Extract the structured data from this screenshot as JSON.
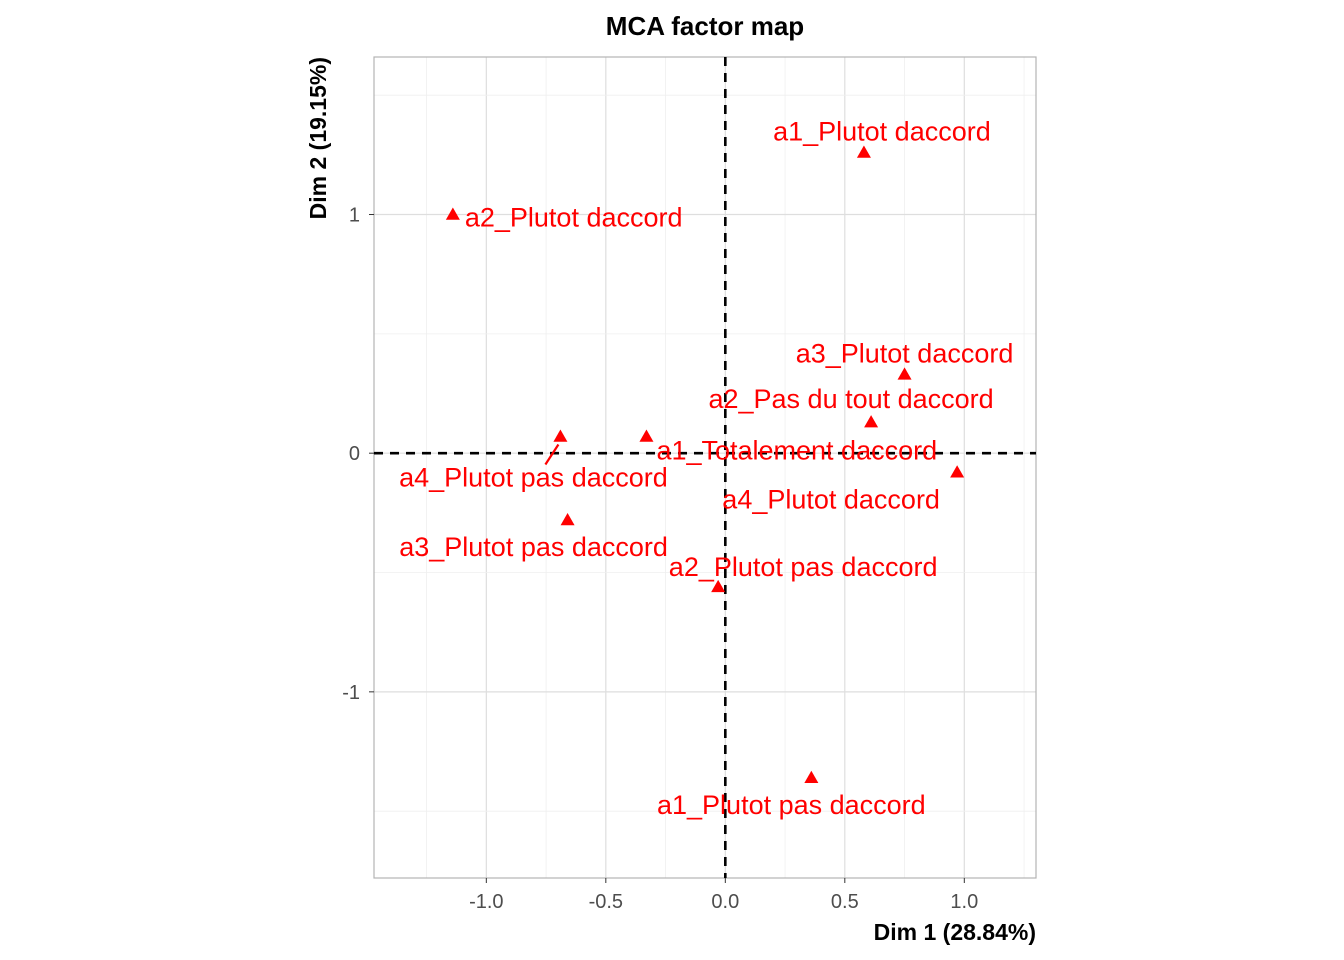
{
  "chart_data": {
    "type": "scatter",
    "title": "MCA factor map",
    "xlabel": "Dim 1 (28.84%)",
    "ylabel": "Dim 2 (19.15%)",
    "xlim": [
      -1.47,
      1.3
    ],
    "ylim": [
      -1.78,
      1.66
    ],
    "x_ticks": [
      -1.0,
      -0.5,
      0.0,
      0.5,
      1.0
    ],
    "x_tick_labels": [
      "-1.0",
      "-0.5",
      "0.0",
      "0.5",
      "1.0"
    ],
    "y_ticks": [
      -1,
      0,
      1
    ],
    "y_tick_labels": [
      "-1",
      "0",
      "1"
    ],
    "grid": true,
    "reference_lines": {
      "x": 0,
      "y": 0,
      "style": "dashed"
    },
    "point_color": "#ff0000",
    "marker": "triangle",
    "points": [
      {
        "label": "a1_Plutot daccord",
        "x": 0.58,
        "y": 1.26
      },
      {
        "label": "a2_Plutot daccord",
        "x": -1.14,
        "y": 1.0
      },
      {
        "label": "a3_Plutot daccord",
        "x": 0.75,
        "y": 0.33
      },
      {
        "label": "a2_Pas du tout daccord",
        "x": 0.61,
        "y": 0.13
      },
      {
        "label": "a1_Totalement daccord",
        "x": -0.33,
        "y": 0.07
      },
      {
        "label": "a4_Plutot pas daccord",
        "x": -0.69,
        "y": 0.07
      },
      {
        "label": "a4_Plutot daccord",
        "x": 0.97,
        "y": -0.08
      },
      {
        "label": "a3_Plutot pas daccord",
        "x": -0.66,
        "y": -0.28
      },
      {
        "label": "a2_Plutot pas daccord",
        "x": -0.03,
        "y": -0.56
      },
      {
        "label": "a1_Plutot pas daccord",
        "x": 0.36,
        "y": -1.36
      }
    ]
  }
}
